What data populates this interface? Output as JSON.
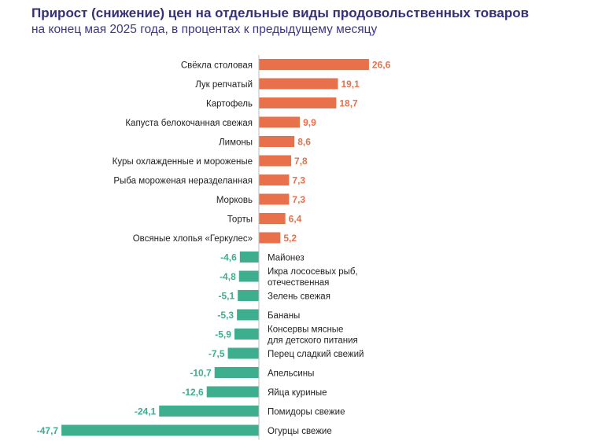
{
  "chart_data": {
    "type": "bar",
    "orientation": "horizontal",
    "title": "Прирост (снижение) цен на отдельные виды продовольственных товаров",
    "subtitle": "на конец мая 2025 года, в процентах к предыдущему месяцу",
    "categories": [
      "Свёкла столовая",
      "Лук репчатый",
      "Картофель",
      "Капуста белокочанная свежая",
      "Лимоны",
      "Куры охлажденные и мороженые",
      "Рыба мороженая неразделанная",
      "Морковь",
      "Торты",
      "Овсяные хлопья «Геркулес»",
      "Майонез",
      "Икра лососевых рыб,\nотечественная",
      "Зелень свежая",
      "Бананы",
      "Консервы мясные\nдля детского питания",
      "Перец сладкий свежий",
      "Апельсины",
      "Яйца куриные",
      "Помидоры свежие",
      "Огурцы свежие"
    ],
    "values": [
      26.6,
      19.1,
      18.7,
      9.9,
      8.6,
      7.8,
      7.3,
      7.3,
      6.4,
      5.2,
      -4.6,
      -4.8,
      -5.1,
      -5.3,
      -5.9,
      -7.5,
      -10.7,
      -12.6,
      -24.1,
      -47.7
    ],
    "labels": [
      "26,6",
      "19,1",
      "18,7",
      "9,9",
      "8,6",
      "7,8",
      "7,3",
      "7,3",
      "6,4",
      "5,2",
      "-4,6",
      "-4,8",
      "-5,1",
      "-5,3",
      "-5,9",
      "-7,5",
      "-10,7",
      "-12,6",
      "-24,1",
      "-47,7"
    ],
    "colors": {
      "positive": "#e8704a",
      "negative": "#3dae8e",
      "axis": "#bbbbbb"
    },
    "grid": false
  }
}
